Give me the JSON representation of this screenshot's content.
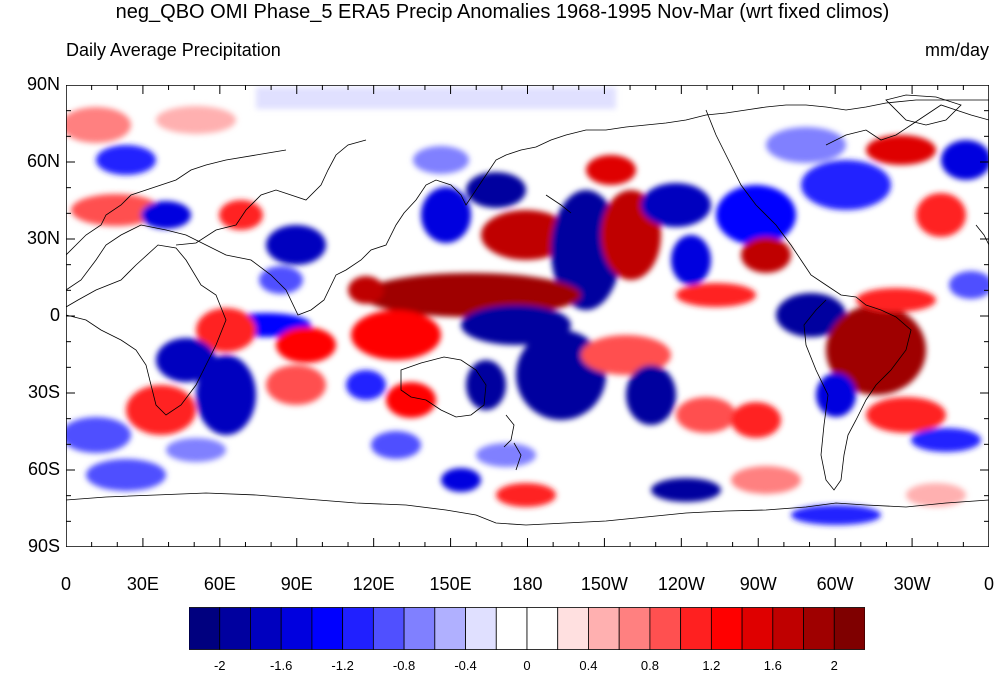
{
  "title": "neg_QBO OMI Phase_5 ERA5 Precip Anomalies 1968-1995 Nov-Mar (wrt fixed climos)",
  "subtitle_left": "Daily Average Precipitation",
  "subtitle_right": "mm/day",
  "lat_labels": [
    "90N",
    "60N",
    "30N",
    "0",
    "30S",
    "60S",
    "90S"
  ],
  "lon_labels": [
    "0",
    "30E",
    "60E",
    "90E",
    "120E",
    "150E",
    "180",
    "150W",
    "120W",
    "90W",
    "60W",
    "30W",
    "0"
  ],
  "colorbar": {
    "labels": [
      "-2",
      "-1.6",
      "-1.2",
      "-0.8",
      "-0.4",
      "0",
      "0.4",
      "0.8",
      "1.2",
      "1.6",
      "2"
    ],
    "colors": [
      "#00007f",
      "#00009f",
      "#0000bf",
      "#0000df",
      "#0000ff",
      "#2020ff",
      "#5050ff",
      "#8080ff",
      "#b0b0ff",
      "#e0e0ff",
      "#ffffff",
      "#ffffff",
      "#ffe0e0",
      "#ffb0b0",
      "#ff8080",
      "#ff5050",
      "#ff2020",
      "#ff0000",
      "#df0000",
      "#bf0000",
      "#9f0000",
      "#7f0000"
    ]
  }
}
